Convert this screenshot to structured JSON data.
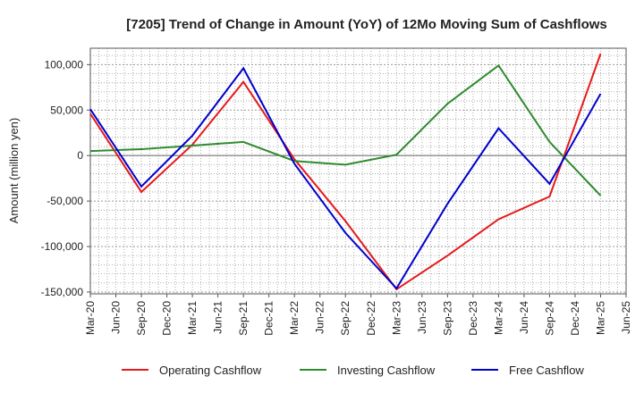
{
  "chart_data": {
    "type": "line",
    "title": "[7205]  Trend of Change in Amount (YoY) of 12Mo Moving Sum of Cashflows",
    "xlabel": "",
    "ylabel": "Amount (million yen)",
    "ylim": [
      -152000,
      118000
    ],
    "yticks": [
      100000,
      50000,
      0,
      -50000,
      -100000,
      -150000
    ],
    "ytick_labels": [
      "100,000",
      "50,000",
      "0",
      "-50,000",
      "-100,000",
      "-150,000"
    ],
    "grid": true,
    "legend_position": "bottom",
    "categories": [
      "Mar-20",
      "Jun-20",
      "Sep-20",
      "Dec-20",
      "Mar-21",
      "Jun-21",
      "Sep-21",
      "Dec-21",
      "Mar-22",
      "Jun-22",
      "Sep-22",
      "Dec-22",
      "Mar-23",
      "Jun-23",
      "Sep-23",
      "Dec-23",
      "Mar-24",
      "Jun-24",
      "Sep-24",
      "Dec-24",
      "Mar-25",
      "Jun-25"
    ],
    "series": [
      {
        "name": "Operating Cashflow",
        "color": "#e41a1c",
        "x": [
          "Mar-20",
          "Sep-20",
          "Mar-21",
          "Sep-21",
          "Mar-22",
          "Sep-22",
          "Mar-23",
          "Sep-23",
          "Mar-24",
          "Sep-24",
          "Mar-25"
        ],
        "values": [
          46000,
          -40000,
          12000,
          81000,
          -4000,
          -72000,
          -147000,
          -110000,
          -70000,
          -45000,
          112000
        ]
      },
      {
        "name": "Investing Cashflow",
        "color": "#2e8b2e",
        "x": [
          "Mar-20",
          "Sep-20",
          "Mar-21",
          "Sep-21",
          "Mar-22",
          "Sep-22",
          "Mar-23",
          "Sep-23",
          "Mar-24",
          "Sep-24",
          "Mar-25"
        ],
        "values": [
          5000,
          7000,
          11000,
          15000,
          -6000,
          -10000,
          1000,
          57000,
          99000,
          15000,
          -44000
        ]
      },
      {
        "name": "Free Cashflow",
        "color": "#0000cc",
        "x": [
          "Mar-20",
          "Sep-20",
          "Mar-21",
          "Sep-21",
          "Mar-22",
          "Sep-22",
          "Mar-23",
          "Sep-23",
          "Mar-24",
          "Sep-24",
          "Mar-25"
        ],
        "values": [
          51000,
          -34000,
          22000,
          96000,
          -9000,
          -85000,
          -146000,
          -53000,
          30000,
          -31000,
          68000
        ]
      }
    ]
  }
}
